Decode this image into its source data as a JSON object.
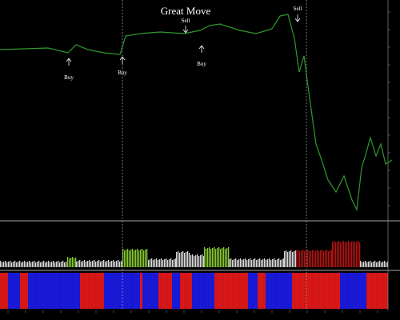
{
  "labels": {
    "title": "Great Move",
    "buy": [
      "Buy",
      "Buy",
      "Buy"
    ],
    "sell": [
      "Sell",
      "Sell"
    ]
  }
}
